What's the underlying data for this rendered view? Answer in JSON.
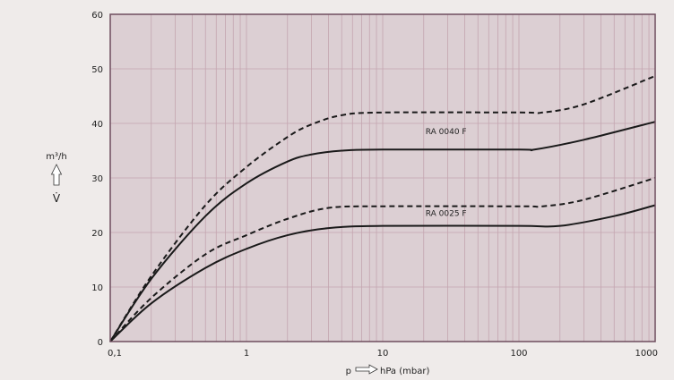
{
  "chart_data": {
    "type": "line",
    "xlabel": "p",
    "xunit": "hPa (mbar)",
    "ylabel_unit": "m³/h",
    "ylabel_symbol": "V̇",
    "x_scale": "log",
    "xlim": [
      0.1,
      1000
    ],
    "ylim": [
      0,
      60
    ],
    "grid": true,
    "x_ticks": [
      {
        "v": 0.1,
        "label": "0,1"
      },
      {
        "v": 1,
        "label": "1"
      },
      {
        "v": 10,
        "label": "10"
      },
      {
        "v": 100,
        "label": "100"
      },
      {
        "v": 1000,
        "label": "1000"
      }
    ],
    "y_ticks": [
      0,
      10,
      20,
      30,
      40,
      50,
      60
    ],
    "series": [
      {
        "name": "RA 0040 F",
        "style": "dashed",
        "x": [
          0.1,
          0.2,
          0.5,
          1,
          2,
          3,
          5,
          10,
          100,
          150,
          300,
          1000
        ],
        "y": [
          0,
          12,
          25,
          32,
          37.5,
          39.8,
          41.5,
          42,
          42,
          42,
          43.5,
          48.7
        ]
      },
      {
        "name": "RA 0040 F",
        "style": "solid",
        "x": [
          0.1,
          0.2,
          0.5,
          1,
          2,
          3,
          5,
          10,
          100,
          130,
          300,
          1000
        ],
        "y": [
          0,
          11.5,
          23,
          29,
          33,
          34.3,
          35,
          35.2,
          35.2,
          35.2,
          37,
          40.3
        ]
      },
      {
        "name": "RA 0025 F",
        "style": "dashed",
        "x": [
          0.1,
          0.2,
          0.5,
          1,
          2,
          4,
          10,
          100,
          150,
          300,
          1000
        ],
        "y": [
          0,
          8,
          16,
          19.5,
          22.5,
          24.5,
          24.8,
          24.8,
          24.8,
          26,
          30
        ]
      },
      {
        "name": "RA 0025 F",
        "style": "solid",
        "x": [
          0.1,
          0.2,
          0.5,
          1,
          2,
          4,
          10,
          100,
          200,
          500,
          1000
        ],
        "y": [
          0,
          7,
          13.5,
          17,
          19.5,
          20.8,
          21.2,
          21.2,
          21.2,
          23,
          25
        ]
      }
    ],
    "annotations": [
      {
        "text": "RA 0040 F",
        "x": 20,
        "y": 38.5
      },
      {
        "text": "RA 0025 F",
        "x": 20,
        "y": 23.5
      }
    ],
    "colors": {
      "background": "#efebea",
      "plot": "#dccfd3",
      "grid": "#c4a5b0",
      "frame": "#6e4d5e",
      "line": "#1a1a1a"
    }
  }
}
